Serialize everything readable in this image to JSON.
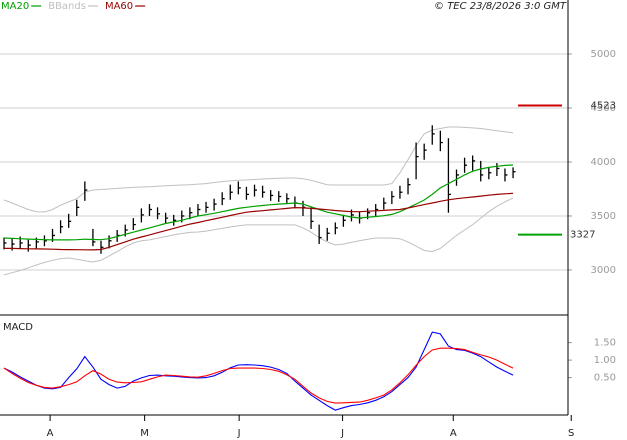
{
  "chart_data": [
    {
      "type": "ohlc",
      "credit": "© TEC 23/8/2026 3:0 GMT",
      "xlim": [
        -0.5,
        69.8
      ],
      "ylim": [
        2583,
        5500
      ],
      "yticks": [
        5000,
        4500,
        4000,
        3500,
        3000
      ],
      "grid": true,
      "bar_color": "#000000",
      "high": [
        3300,
        3290,
        3310,
        3280,
        3300,
        3320,
        3380,
        3460,
        3520,
        3650,
        3820,
        3380,
        3270,
        3320,
        3370,
        3420,
        3480,
        3570,
        3610,
        3580,
        3530,
        3510,
        3550,
        3580,
        3610,
        3630,
        3660,
        3720,
        3790,
        3820,
        3770,
        3790,
        3780,
        3740,
        3730,
        3710,
        3680,
        3640,
        3580,
        3420,
        3390,
        3440,
        3510,
        3560,
        3540,
        3570,
        3610,
        3670,
        3730,
        3780,
        3850,
        4180,
        4170,
        4340,
        4290,
        4220,
        3930,
        4040,
        4060,
        4010,
        3950,
        3990,
        3940,
        3950
      ],
      "low": [
        3190,
        3180,
        3200,
        3170,
        3200,
        3220,
        3260,
        3340,
        3390,
        3500,
        3640,
        3220,
        3150,
        3200,
        3260,
        3310,
        3370,
        3440,
        3500,
        3470,
        3430,
        3410,
        3440,
        3470,
        3500,
        3530,
        3550,
        3600,
        3650,
        3700,
        3650,
        3680,
        3670,
        3640,
        3630,
        3610,
        3570,
        3500,
        3380,
        3240,
        3270,
        3330,
        3400,
        3450,
        3430,
        3470,
        3500,
        3560,
        3610,
        3660,
        3700,
        3840,
        4020,
        4160,
        4100,
        3530,
        3780,
        3900,
        3920,
        3820,
        3840,
        3870,
        3820,
        3850
      ],
      "close": [
        3250,
        3240,
        3250,
        3230,
        3260,
        3270,
        3320,
        3400,
        3450,
        3580,
        3740,
        3260,
        3210,
        3270,
        3320,
        3370,
        3420,
        3510,
        3560,
        3520,
        3480,
        3460,
        3500,
        3530,
        3560,
        3580,
        3610,
        3660,
        3720,
        3760,
        3700,
        3740,
        3720,
        3690,
        3680,
        3660,
        3620,
        3580,
        3450,
        3300,
        3340,
        3390,
        3460,
        3510,
        3480,
        3530,
        3560,
        3620,
        3680,
        3720,
        3790,
        4050,
        4110,
        4260,
        4180,
        3700,
        3880,
        3970,
        4010,
        3880,
        3900,
        3940,
        3880,
        3910
      ],
      "series": [
        {
          "name": "MA20",
          "color": "#00a000",
          "values": [
            3296,
            3292,
            3290,
            3286,
            3283,
            3280,
            3278,
            3278,
            3278,
            3280,
            3285,
            3282,
            3280,
            3290,
            3310,
            3330,
            3350,
            3370,
            3390,
            3410,
            3430,
            3445,
            3460,
            3480,
            3500,
            3512,
            3525,
            3540,
            3555,
            3570,
            3580,
            3590,
            3597,
            3604,
            3610,
            3615,
            3620,
            3610,
            3585,
            3560,
            3535,
            3520,
            3505,
            3490,
            3481,
            3488,
            3495,
            3503,
            3515,
            3540,
            3575,
            3610,
            3648,
            3700,
            3760,
            3800,
            3840,
            3880,
            3915,
            3935,
            3950,
            3960,
            3968,
            3972
          ]
        },
        {
          "name": "BBands",
          "color": "#c0c0c0",
          "upper": [
            3648,
            3620,
            3590,
            3560,
            3540,
            3537,
            3560,
            3600,
            3630,
            3660,
            3720,
            3741,
            3745,
            3750,
            3755,
            3760,
            3765,
            3768,
            3770,
            3775,
            3780,
            3783,
            3787,
            3790,
            3795,
            3800,
            3810,
            3818,
            3825,
            3830,
            3833,
            3838,
            3842,
            3846,
            3850,
            3852,
            3852,
            3845,
            3830,
            3810,
            3790,
            3787,
            3787,
            3787,
            3787,
            3787,
            3787,
            3787,
            3800,
            3900,
            4020,
            4150,
            4260,
            4296,
            4310,
            4324,
            4324,
            4320,
            4316,
            4310,
            4300,
            4290,
            4280,
            4269
          ],
          "lower": [
            2954,
            2975,
            2995,
            3020,
            3046,
            3070,
            3090,
            3105,
            3111,
            3100,
            3085,
            3074,
            3090,
            3130,
            3170,
            3215,
            3250,
            3270,
            3278,
            3295,
            3310,
            3325,
            3338,
            3348,
            3352,
            3360,
            3372,
            3385,
            3398,
            3410,
            3417,
            3417,
            3417,
            3417,
            3417,
            3417,
            3417,
            3390,
            3350,
            3300,
            3260,
            3231,
            3240,
            3255,
            3270,
            3285,
            3296,
            3296,
            3295,
            3290,
            3260,
            3220,
            3180,
            3170,
            3200,
            3260,
            3320,
            3370,
            3420,
            3480,
            3540,
            3590,
            3630,
            3667
          ]
        },
        {
          "name": "MA60",
          "color": "#990000",
          "values": [
            3200,
            3200,
            3198,
            3196,
            3195,
            3194,
            3192,
            3190,
            3189,
            3188,
            3187,
            3186,
            3190,
            3210,
            3235,
            3260,
            3285,
            3305,
            3325,
            3345,
            3365,
            3385,
            3405,
            3425,
            3440,
            3456,
            3472,
            3488,
            3504,
            3520,
            3535,
            3542,
            3549,
            3556,
            3563,
            3570,
            3578,
            3575,
            3570,
            3565,
            3558,
            3551,
            3545,
            3540,
            3540,
            3544,
            3548,
            3552,
            3556,
            3560,
            3574,
            3590,
            3605,
            3620,
            3636,
            3650,
            3660,
            3668,
            3676,
            3684,
            3692,
            3700,
            3705,
            3710
          ]
        }
      ],
      "annotations": [
        {
          "value": 4523,
          "color": "#cc0000"
        },
        {
          "value": 3327,
          "color": "#00a000"
        }
      ]
    },
    {
      "type": "line",
      "title": "MACD",
      "xlim": [
        -0.5,
        69.8
      ],
      "ylim": [
        -0.57,
        2.29
      ],
      "yticks": [
        {
          "value": 1.5,
          "label": "1.50"
        },
        {
          "value": 1,
          "label": "1.00"
        },
        {
          "value": 0.5,
          "label": "0.50"
        }
      ],
      "xticks": [
        {
          "value": 5.7,
          "label": "A"
        },
        {
          "value": 17.4,
          "label": "M"
        },
        {
          "value": 29.1,
          "label": "J"
        },
        {
          "value": 41.9,
          "label": "J"
        },
        {
          "value": 55.6,
          "label": "A"
        },
        {
          "value": 70.2,
          "label": "S"
        }
      ],
      "series": [
        {
          "color": "#0000ff",
          "values": [
            0.77,
            0.66,
            0.52,
            0.4,
            0.28,
            0.2,
            0.18,
            0.22,
            0.5,
            0.75,
            1.1,
            0.8,
            0.45,
            0.3,
            0.2,
            0.25,
            0.4,
            0.49,
            0.56,
            0.57,
            0.55,
            0.54,
            0.52,
            0.5,
            0.49,
            0.5,
            0.55,
            0.65,
            0.78,
            0.86,
            0.87,
            0.86,
            0.84,
            0.8,
            0.73,
            0.62,
            0.4,
            0.2,
            0.0,
            -0.15,
            -0.3,
            -0.43,
            -0.36,
            -0.3,
            -0.27,
            -0.22,
            -0.15,
            -0.05,
            0.1,
            0.3,
            0.5,
            0.8,
            1.3,
            1.8,
            1.75,
            1.4,
            1.3,
            1.28,
            1.2,
            1.1,
            0.95,
            0.8,
            0.68,
            0.57
          ]
        },
        {
          "color": "#ff0000",
          "values": [
            0.77,
            0.62,
            0.48,
            0.36,
            0.28,
            0.22,
            0.2,
            0.24,
            0.3,
            0.38,
            0.55,
            0.7,
            0.6,
            0.45,
            0.37,
            0.35,
            0.36,
            0.38,
            0.45,
            0.52,
            0.57,
            0.56,
            0.54,
            0.52,
            0.51,
            0.55,
            0.62,
            0.7,
            0.76,
            0.77,
            0.77,
            0.77,
            0.76,
            0.73,
            0.68,
            0.58,
            0.45,
            0.25,
            0.06,
            -0.08,
            -0.18,
            -0.23,
            -0.22,
            -0.21,
            -0.2,
            -0.15,
            -0.08,
            0.0,
            0.15,
            0.35,
            0.58,
            0.85,
            1.1,
            1.29,
            1.34,
            1.34,
            1.33,
            1.3,
            1.22,
            1.15,
            1.09,
            1.0,
            0.88,
            0.77
          ]
        }
      ]
    }
  ]
}
